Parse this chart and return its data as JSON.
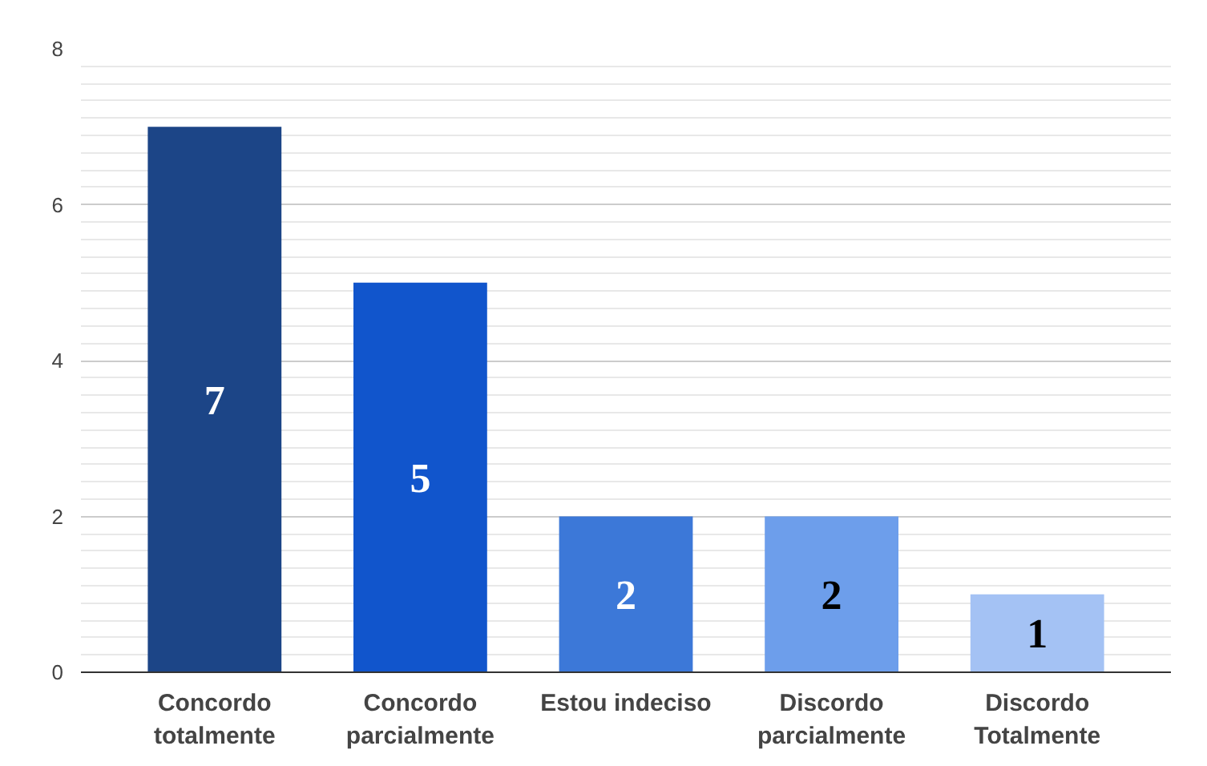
{
  "chart_data": {
    "type": "bar",
    "categories": [
      "Concordo totalmente",
      "Concordo parcialmente",
      "Estou indeciso",
      "Discordo parcialmente",
      "Discordo Totalmente"
    ],
    "values": [
      7,
      5,
      2,
      2,
      1
    ],
    "colors": [
      "#1c4587",
      "#1155cc",
      "#3c78d8",
      "#6d9eeb",
      "#a4c2f4"
    ],
    "ylim": [
      0,
      8
    ],
    "yticks": [
      0,
      2,
      4,
      6,
      8
    ],
    "grid": "y",
    "data_labels": true
  }
}
